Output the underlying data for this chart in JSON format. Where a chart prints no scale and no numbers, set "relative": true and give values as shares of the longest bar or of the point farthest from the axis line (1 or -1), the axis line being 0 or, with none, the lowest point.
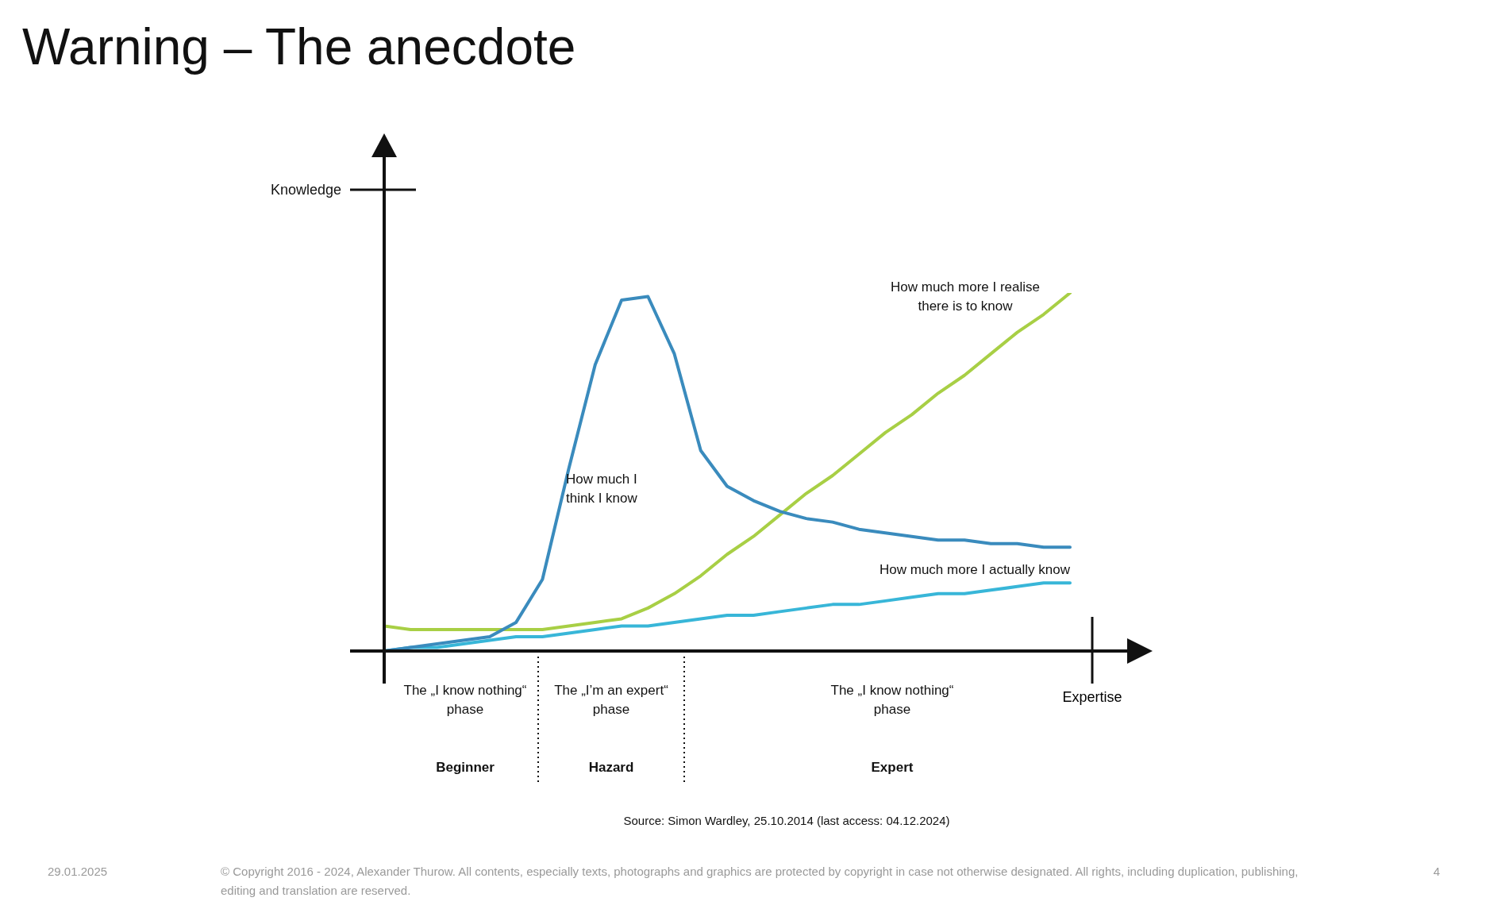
{
  "chart_data": {
    "type": "line",
    "title": "Warning – The anecdote",
    "xlabel": "Expertise",
    "relative": true,
    "legend": false,
    "marker": "none",
    "line_style": "solid",
    "categories": [
      null,
      null,
      null,
      null,
      null,
      null,
      null,
      null,
      null,
      null,
      null,
      null,
      null,
      null,
      null,
      null,
      null,
      null,
      null,
      null,
      null,
      null,
      null,
      null,
      null,
      null,
      null
    ],
    "series": [
      {
        "name": "How much I think I know",
        "color": "#3a8bbd",
        "values": [
          0,
          0.01,
          0.02,
          0.03,
          0.04,
          0.08,
          0.2,
          0.51,
          0.8,
          0.98,
          0.99,
          0.83,
          0.56,
          0.46,
          0.42,
          0.39,
          0.37,
          0.36,
          0.34,
          0.33,
          0.32,
          0.31,
          0.31,
          0.3,
          0.3,
          0.29,
          0.29
        ]
      },
      {
        "name": "How much more I realise there is to know",
        "color": "#a8cf45",
        "values": [
          0.07,
          0.06,
          0.06,
          0.06,
          0.06,
          0.06,
          0.06,
          0.07,
          0.08,
          0.09,
          0.12,
          0.16,
          0.21,
          0.27,
          0.32,
          0.38,
          0.44,
          0.49,
          0.55,
          0.61,
          0.66,
          0.72,
          0.77,
          0.83,
          0.89,
          0.94,
          1
        ]
      },
      {
        "name": "How much more I actually know",
        "color": "#38b6d8",
        "values": [
          0,
          0.01,
          0.01,
          0.02,
          0.03,
          0.04,
          0.04,
          0.05,
          0.06,
          0.07,
          0.07,
          0.08,
          0.09,
          0.1,
          0.1,
          0.11,
          0.12,
          0.13,
          0.13,
          0.14,
          0.15,
          0.16,
          0.16,
          0.17,
          0.18,
          0.19,
          0.19
        ]
      }
    ],
    "annotations": [
      "The „I know nothing“ phase",
      "Beginner",
      "The „I’m an expert“ phase",
      "Hazard",
      "The „I know nothing“ phase",
      "Expert",
      "Source: Simon Wardley, 25.10.2014 (last access: 04.12.2024)",
      "29.01.2025",
      "© Copyright 2016 - 2024, Alexander Thurow. All contents, especially texts, photographs and graphics are protected by copyright in case not otherwise designated. All rights, including duplication, publishing, editing and translation are reserved.",
      "4",
      "Knowledge"
    ]
  }
}
